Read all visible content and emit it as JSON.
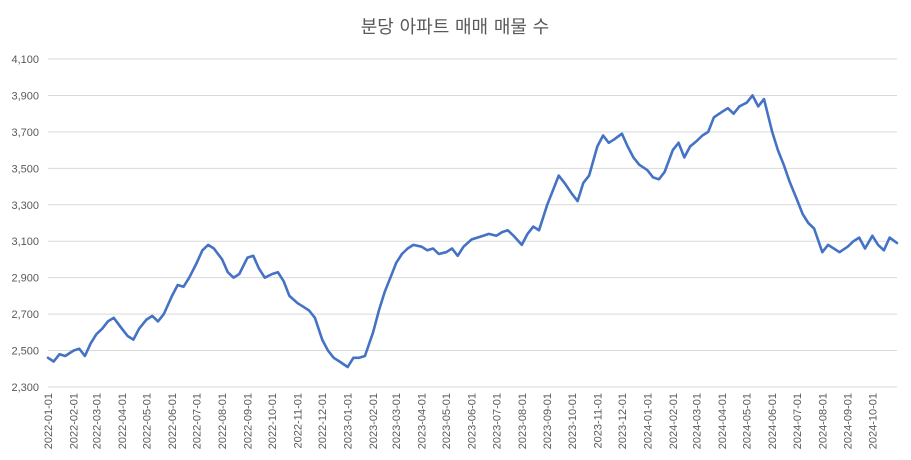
{
  "chart_data": {
    "type": "line",
    "title": "분당 아파트 매매 매물 수",
    "xlabel": "",
    "ylabel": "",
    "ylim": [
      2300,
      4100
    ],
    "yticks": [
      2300,
      2500,
      2700,
      2900,
      3100,
      3300,
      3500,
      3700,
      3900,
      4100
    ],
    "ytick_labels": [
      "2,300",
      "2,500",
      "2,700",
      "2,900",
      "3,100",
      "3,300",
      "3,500",
      "3,700",
      "3,900",
      "4,100"
    ],
    "xticks": [
      "2022-01-01",
      "2022-02-01",
      "2022-03-01",
      "2022-04-01",
      "2022-05-01",
      "2022-06-01",
      "2022-07-01",
      "2022-08-01",
      "2022-09-01",
      "2022-10-01",
      "2022-11-01",
      "2022-12-01",
      "2023-01-01",
      "2023-02-01",
      "2023-03-01",
      "2023-04-01",
      "2023-05-01",
      "2023-06-01",
      "2023-07-01",
      "2023-08-01",
      "2023-09-01",
      "2023-10-01",
      "2023-11-01",
      "2023-12-01",
      "2024-01-01",
      "2024-02-01",
      "2024-03-01",
      "2024-04-01",
      "2024-05-01",
      "2024-06-01",
      "2024-07-01",
      "2024-08-01",
      "2024-09-01",
      "2024-10-01"
    ],
    "x_range": [
      "2022-01-01",
      "2024-10-31"
    ],
    "grid": true,
    "legend": "none",
    "series": [
      {
        "color": "#4472c4",
        "points": [
          [
            "2022-01-01",
            2460
          ],
          [
            "2022-01-08",
            2440
          ],
          [
            "2022-01-15",
            2480
          ],
          [
            "2022-01-22",
            2470
          ],
          [
            "2022-02-01",
            2500
          ],
          [
            "2022-02-08",
            2510
          ],
          [
            "2022-02-15",
            2470
          ],
          [
            "2022-02-22",
            2540
          ],
          [
            "2022-03-01",
            2590
          ],
          [
            "2022-03-08",
            2620
          ],
          [
            "2022-03-15",
            2660
          ],
          [
            "2022-03-22",
            2680
          ],
          [
            "2022-04-01",
            2620
          ],
          [
            "2022-04-08",
            2580
          ],
          [
            "2022-04-15",
            2560
          ],
          [
            "2022-04-22",
            2620
          ],
          [
            "2022-05-01",
            2670
          ],
          [
            "2022-05-08",
            2690
          ],
          [
            "2022-05-15",
            2660
          ],
          [
            "2022-05-22",
            2700
          ],
          [
            "2022-06-01",
            2800
          ],
          [
            "2022-06-08",
            2860
          ],
          [
            "2022-06-15",
            2850
          ],
          [
            "2022-06-22",
            2900
          ],
          [
            "2022-07-01",
            2980
          ],
          [
            "2022-07-08",
            3050
          ],
          [
            "2022-07-15",
            3080
          ],
          [
            "2022-07-22",
            3060
          ],
          [
            "2022-08-01",
            3000
          ],
          [
            "2022-08-08",
            2930
          ],
          [
            "2022-08-15",
            2900
          ],
          [
            "2022-08-22",
            2920
          ],
          [
            "2022-09-01",
            3010
          ],
          [
            "2022-09-08",
            3020
          ],
          [
            "2022-09-15",
            2950
          ],
          [
            "2022-09-22",
            2900
          ],
          [
            "2022-10-01",
            2920
          ],
          [
            "2022-10-08",
            2930
          ],
          [
            "2022-10-15",
            2880
          ],
          [
            "2022-10-22",
            2800
          ],
          [
            "2022-11-01",
            2760
          ],
          [
            "2022-11-08",
            2740
          ],
          [
            "2022-11-15",
            2720
          ],
          [
            "2022-11-22",
            2680
          ],
          [
            "2022-12-01",
            2560
          ],
          [
            "2022-12-08",
            2500
          ],
          [
            "2022-12-15",
            2460
          ],
          [
            "2022-12-22",
            2440
          ],
          [
            "2023-01-01",
            2410
          ],
          [
            "2023-01-08",
            2460
          ],
          [
            "2023-01-15",
            2460
          ],
          [
            "2023-01-22",
            2470
          ],
          [
            "2023-02-01",
            2600
          ],
          [
            "2023-02-08",
            2720
          ],
          [
            "2023-02-15",
            2820
          ],
          [
            "2023-02-22",
            2900
          ],
          [
            "2023-03-01",
            2980
          ],
          [
            "2023-03-08",
            3030
          ],
          [
            "2023-03-15",
            3060
          ],
          [
            "2023-03-22",
            3080
          ],
          [
            "2023-04-01",
            3070
          ],
          [
            "2023-04-08",
            3050
          ],
          [
            "2023-04-15",
            3060
          ],
          [
            "2023-04-22",
            3030
          ],
          [
            "2023-05-01",
            3040
          ],
          [
            "2023-05-08",
            3060
          ],
          [
            "2023-05-15",
            3020
          ],
          [
            "2023-05-22",
            3070
          ],
          [
            "2023-06-01",
            3110
          ],
          [
            "2023-06-08",
            3120
          ],
          [
            "2023-06-15",
            3130
          ],
          [
            "2023-06-22",
            3140
          ],
          [
            "2023-07-01",
            3130
          ],
          [
            "2023-07-08",
            3150
          ],
          [
            "2023-07-15",
            3160
          ],
          [
            "2023-07-22",
            3130
          ],
          [
            "2023-08-01",
            3080
          ],
          [
            "2023-08-08",
            3140
          ],
          [
            "2023-08-15",
            3180
          ],
          [
            "2023-08-22",
            3160
          ],
          [
            "2023-09-01",
            3300
          ],
          [
            "2023-09-08",
            3380
          ],
          [
            "2023-09-15",
            3460
          ],
          [
            "2023-09-22",
            3420
          ],
          [
            "2023-10-01",
            3360
          ],
          [
            "2023-10-08",
            3320
          ],
          [
            "2023-10-15",
            3420
          ],
          [
            "2023-10-22",
            3460
          ],
          [
            "2023-11-01",
            3620
          ],
          [
            "2023-11-08",
            3680
          ],
          [
            "2023-11-15",
            3640
          ],
          [
            "2023-11-22",
            3660
          ],
          [
            "2023-12-01",
            3690
          ],
          [
            "2023-12-08",
            3620
          ],
          [
            "2023-12-15",
            3560
          ],
          [
            "2023-12-22",
            3520
          ],
          [
            "2024-01-01",
            3490
          ],
          [
            "2024-01-08",
            3450
          ],
          [
            "2024-01-15",
            3440
          ],
          [
            "2024-01-22",
            3480
          ],
          [
            "2024-02-01",
            3600
          ],
          [
            "2024-02-08",
            3640
          ],
          [
            "2024-02-15",
            3560
          ],
          [
            "2024-02-22",
            3620
          ],
          [
            "2024-03-01",
            3650
          ],
          [
            "2024-03-08",
            3680
          ],
          [
            "2024-03-15",
            3700
          ],
          [
            "2024-03-22",
            3780
          ],
          [
            "2024-04-01",
            3810
          ],
          [
            "2024-04-08",
            3830
          ],
          [
            "2024-04-15",
            3800
          ],
          [
            "2024-04-22",
            3840
          ],
          [
            "2024-05-01",
            3860
          ],
          [
            "2024-05-08",
            3900
          ],
          [
            "2024-05-15",
            3840
          ],
          [
            "2024-05-22",
            3880
          ],
          [
            "2024-06-01",
            3700
          ],
          [
            "2024-06-08",
            3600
          ],
          [
            "2024-06-15",
            3520
          ],
          [
            "2024-06-22",
            3430
          ],
          [
            "2024-07-01",
            3330
          ],
          [
            "2024-07-08",
            3250
          ],
          [
            "2024-07-15",
            3200
          ],
          [
            "2024-07-22",
            3170
          ],
          [
            "2024-08-01",
            3040
          ],
          [
            "2024-08-08",
            3080
          ],
          [
            "2024-08-15",
            3060
          ],
          [
            "2024-08-22",
            3040
          ],
          [
            "2024-09-01",
            3070
          ],
          [
            "2024-09-08",
            3100
          ],
          [
            "2024-09-15",
            3120
          ],
          [
            "2024-09-22",
            3060
          ],
          [
            "2024-10-01",
            3130
          ],
          [
            "2024-10-08",
            3080
          ],
          [
            "2024-10-15",
            3050
          ],
          [
            "2024-10-22",
            3120
          ],
          [
            "2024-10-31",
            3090
          ]
        ]
      }
    ]
  }
}
